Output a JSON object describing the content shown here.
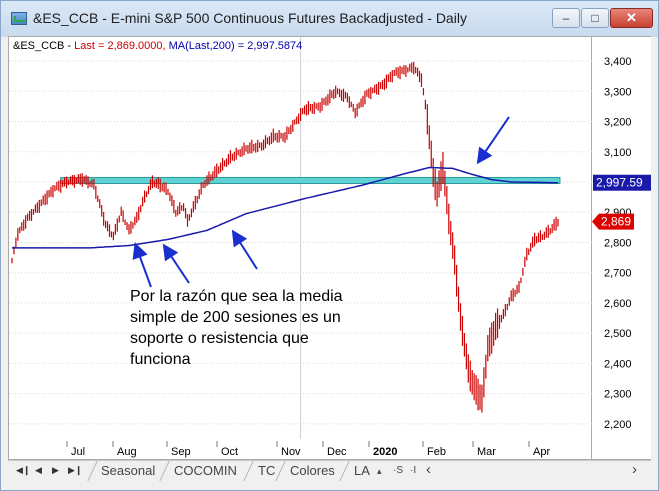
{
  "window": {
    "title": "&ES_CCB - E-mini S&P 500 Continuous Futures Backadjusted - Daily",
    "controls": {
      "minimize": "–",
      "maximize": "□",
      "close": "✕"
    }
  },
  "legend": {
    "symbol": "&ES_CCB - ",
    "last": "Last = 2,869.0000, ",
    "ma": "MA(Last,200) = 2,997.5874"
  },
  "annotation": "Por la razón que sea la media simple de 200 sesiones es un soporte o resistencia que funciona",
  "tabs": {
    "items": [
      "Seasonal",
      "COCOMIN",
      "TC",
      "Colores",
      "LA"
    ],
    "controls": [
      "▴",
      "·S",
      "·I",
      "‹"
    ]
  },
  "chart_data": {
    "type": "bar",
    "ylim": [
      2150,
      3420
    ],
    "y_ticks": [
      2200,
      2300,
      2400,
      2500,
      2600,
      2700,
      2800,
      2900,
      3000,
      3100,
      3200,
      3300,
      3400
    ],
    "y_tick_labels": [
      "2,200",
      "2,300",
      "2,400",
      "2,500",
      "2,600",
      "2,700",
      "2,800",
      "2,900",
      "3,000",
      "3,100",
      "3,200",
      "3,300",
      "3,400"
    ],
    "x_labels": [
      "Jul",
      "Aug",
      "Sep",
      "Oct",
      "Nov",
      "Dec",
      "2020",
      "Feb",
      "Mar",
      "Apr"
    ],
    "price_series": {
      "name": "Last",
      "color": "#cc0000",
      "anchors": [
        [
          0,
          2740
        ],
        [
          3,
          2830
        ],
        [
          8,
          2880
        ],
        [
          15,
          2930
        ],
        [
          22,
          2980
        ],
        [
          28,
          3000
        ],
        [
          36,
          3010
        ],
        [
          42,
          2990
        ],
        [
          48,
          2860
        ],
        [
          52,
          2820
        ],
        [
          56,
          2900
        ],
        [
          60,
          2840
        ],
        [
          64,
          2880
        ],
        [
          68,
          2950
        ],
        [
          72,
          3000
        ],
        [
          76,
          2990
        ],
        [
          80,
          2970
        ],
        [
          84,
          2900
        ],
        [
          88,
          2920
        ],
        [
          90,
          2870
        ],
        [
          94,
          2930
        ],
        [
          98,
          2990
        ],
        [
          104,
          3030
        ],
        [
          112,
          3080
        ],
        [
          120,
          3110
        ],
        [
          128,
          3120
        ],
        [
          134,
          3150
        ],
        [
          140,
          3150
        ],
        [
          150,
          3240
        ],
        [
          158,
          3250
        ],
        [
          166,
          3300
        ],
        [
          172,
          3280
        ],
        [
          176,
          3230
        ],
        [
          182,
          3290
        ],
        [
          190,
          3320
        ],
        [
          196,
          3360
        ],
        [
          202,
          3370
        ],
        [
          206,
          3380
        ],
        [
          210,
          3340
        ],
        [
          213,
          3210
        ],
        [
          216,
          3030
        ],
        [
          218,
          2960
        ],
        [
          221,
          3050
        ],
        [
          224,
          2880
        ],
        [
          227,
          2740
        ],
        [
          230,
          2550
        ],
        [
          234,
          2380
        ],
        [
          237,
          2320
        ],
        [
          241,
          2280
        ],
        [
          244,
          2450
        ],
        [
          248,
          2520
        ],
        [
          252,
          2560
        ],
        [
          256,
          2620
        ],
        [
          260,
          2650
        ],
        [
          264,
          2760
        ],
        [
          268,
          2810
        ],
        [
          272,
          2820
        ],
        [
          276,
          2840
        ],
        [
          280,
          2869
        ]
      ]
    },
    "ma_series": {
      "name": "MA(Last,200)",
      "color": "#1a1aaa",
      "anchors": [
        [
          0,
          2782
        ],
        [
          40,
          2782
        ],
        [
          60,
          2790
        ],
        [
          80,
          2810
        ],
        [
          100,
          2840
        ],
        [
          120,
          2895
        ],
        [
          150,
          2945
        ],
        [
          180,
          2990
        ],
        [
          200,
          3025
        ],
        [
          214,
          3048
        ],
        [
          226,
          3045
        ],
        [
          236,
          3025
        ],
        [
          246,
          3008
        ],
        [
          256,
          3000
        ],
        [
          280,
          2997.6
        ]
      ]
    },
    "resistance_band": {
      "low": 2995,
      "high": 3015,
      "color": "#5fd3d3"
    },
    "bars_count": 281,
    "last_label": "2,869",
    "ma_label": "2,997.59"
  }
}
